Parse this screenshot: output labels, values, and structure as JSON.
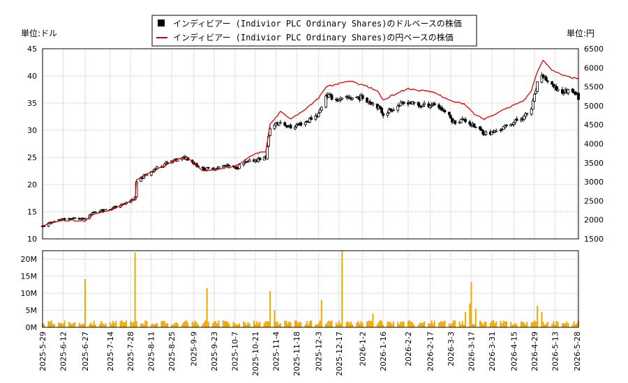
{
  "chart_data": [
    {
      "type": "candlestick",
      "panel": "price",
      "legend": {
        "placement": "top-center",
        "entries": [
          {
            "label": "インディビアー (Indivior PLC Ordinary Shares)のドルベースの株価",
            "color": "#000000",
            "marker": "square"
          },
          {
            "label": "インディビアー (Indivior PLC Ordinary Shares)の円ベースの株価",
            "color": "#e00000",
            "marker": "line"
          }
        ]
      },
      "left_unit": "単位:ドル",
      "right_unit": "単位:円",
      "left_axis": {
        "min": 10,
        "max": 45,
        "ticks": [
          "10",
          "15",
          "20",
          "25",
          "30",
          "35",
          "40",
          "45"
        ]
      },
      "right_axis": {
        "min": 1500,
        "max": 6500,
        "ticks": [
          "1500",
          "2000",
          "2500",
          "3000",
          "3500",
          "4000",
          "4500",
          "5000",
          "5500",
          "6000",
          "6500"
        ]
      },
      "x_range": [
        "2025-05-29",
        "2026-05-29"
      ],
      "grid": true,
      "usd_close_keypoints": [
        [
          "2025-05-29",
          12.3
        ],
        [
          "2025-06-05",
          13.2
        ],
        [
          "2025-06-12",
          13.6
        ],
        [
          "2025-06-20",
          13.8
        ],
        [
          "2025-06-27",
          13.6
        ],
        [
          "2025-07-03",
          15.0
        ],
        [
          "2025-07-14",
          15.5
        ],
        [
          "2025-07-24",
          16.5
        ],
        [
          "2025-07-31",
          17.5
        ],
        [
          "2025-08-01",
          20.5
        ],
        [
          "2025-08-11",
          22.5
        ],
        [
          "2025-08-20",
          23.8
        ],
        [
          "2025-08-28",
          24.5
        ],
        [
          "2025-09-04",
          25.0
        ],
        [
          "2025-09-09",
          24.0
        ],
        [
          "2025-09-15",
          22.8
        ],
        [
          "2025-09-23",
          23.0
        ],
        [
          "2025-10-01",
          23.5
        ],
        [
          "2025-10-07",
          23.0
        ],
        [
          "2025-10-14",
          24.0
        ],
        [
          "2025-10-21",
          24.5
        ],
        [
          "2025-10-28",
          25.0
        ],
        [
          "2025-10-31",
          30.5
        ],
        [
          "2025-11-07",
          31.5
        ],
        [
          "2025-11-14",
          30.5
        ],
        [
          "2025-11-24",
          31.5
        ],
        [
          "2025-12-03",
          33.0
        ],
        [
          "2025-12-08",
          36.5
        ],
        [
          "2025-12-17",
          35.5
        ],
        [
          "2025-12-24",
          36.0
        ],
        [
          "2026-01-02",
          36.0
        ],
        [
          "2026-01-12",
          34.5
        ],
        [
          "2026-01-16",
          33.0
        ],
        [
          "2026-01-26",
          34.5
        ],
        [
          "2026-02-02",
          35.2
        ],
        [
          "2026-02-10",
          34.5
        ],
        [
          "2026-02-20",
          34.8
        ],
        [
          "2026-02-27",
          33.5
        ],
        [
          "2026-03-05",
          31.5
        ],
        [
          "2026-03-12",
          32.0
        ],
        [
          "2026-03-20",
          30.5
        ],
        [
          "2026-03-26",
          29.5
        ],
        [
          "2026-03-31",
          29.5
        ],
        [
          "2026-04-08",
          30.5
        ],
        [
          "2026-04-15",
          31.5
        ],
        [
          "2026-04-22",
          32.5
        ],
        [
          "2026-04-27",
          34.0
        ],
        [
          "2026-05-01",
          38.5
        ],
        [
          "2026-05-05",
          40.0
        ],
        [
          "2026-05-11",
          38.0
        ],
        [
          "2026-05-18",
          37.0
        ],
        [
          "2026-05-25",
          37.5
        ],
        [
          "2026-05-29",
          36.0
        ]
      ],
      "jpy_close_keypoints": [
        [
          "2025-05-29",
          1850
        ],
        [
          "2025-06-12",
          1990
        ],
        [
          "2025-06-27",
          1970
        ],
        [
          "2025-07-03",
          2150
        ],
        [
          "2025-07-14",
          2250
        ],
        [
          "2025-07-31",
          2550
        ],
        [
          "2025-08-01",
          3050
        ],
        [
          "2025-08-11",
          3250
        ],
        [
          "2025-08-28",
          3580
        ],
        [
          "2025-09-04",
          3650
        ],
        [
          "2025-09-15",
          3300
        ],
        [
          "2025-10-07",
          3400
        ],
        [
          "2025-10-21",
          3750
        ],
        [
          "2025-10-28",
          3800
        ],
        [
          "2025-10-31",
          4500
        ],
        [
          "2025-11-07",
          4850
        ],
        [
          "2025-11-14",
          4650
        ],
        [
          "2025-11-24",
          4900
        ],
        [
          "2025-12-03",
          5200
        ],
        [
          "2025-12-08",
          5500
        ],
        [
          "2025-12-24",
          5650
        ],
        [
          "2026-01-02",
          5550
        ],
        [
          "2026-01-12",
          5400
        ],
        [
          "2026-01-16",
          5150
        ],
        [
          "2026-01-26",
          5350
        ],
        [
          "2026-02-02",
          5450
        ],
        [
          "2026-02-20",
          5350
        ],
        [
          "2026-03-05",
          5100
        ],
        [
          "2026-03-12",
          5050
        ],
        [
          "2026-03-20",
          4750
        ],
        [
          "2026-03-26",
          4650
        ],
        [
          "2026-03-31",
          4750
        ],
        [
          "2026-04-08",
          4900
        ],
        [
          "2026-04-22",
          5150
        ],
        [
          "2026-04-27",
          5400
        ],
        [
          "2026-05-01",
          5900
        ],
        [
          "2026-05-05",
          6200
        ],
        [
          "2026-05-11",
          5950
        ],
        [
          "2026-05-18",
          5800
        ],
        [
          "2026-05-29",
          5700
        ]
      ]
    },
    {
      "type": "bar",
      "panel": "volume",
      "y_axis": {
        "min": 0,
        "max": 22.5,
        "unit_suffix": "M",
        "ticks": [
          "0M",
          "5M",
          "10M",
          "15M",
          "20M"
        ]
      },
      "bar_color": "#f0a800",
      "baseline_volume_millions": 1.5,
      "spikes": [
        [
          "2025-06-27",
          14.2
        ],
        [
          "2025-07-31",
          22.0
        ],
        [
          "2025-09-18",
          11.5
        ],
        [
          "2025-10-31",
          10.7
        ],
        [
          "2025-11-03",
          5.0
        ],
        [
          "2025-12-05",
          8.0
        ],
        [
          "2025-12-19",
          22.5
        ],
        [
          "2026-01-09",
          4.0
        ],
        [
          "2026-03-13",
          4.5
        ],
        [
          "2026-03-16",
          7.0
        ],
        [
          "2026-03-17",
          13.3
        ],
        [
          "2026-03-20",
          5.5
        ],
        [
          "2026-05-01",
          6.3
        ],
        [
          "2026-05-04",
          4.5
        ]
      ],
      "x_ticks": [
        "2025-5-29",
        "2025-6-12",
        "2025-6-27",
        "2025-7-14",
        "2025-7-28",
        "2025-8-11",
        "2025-8-25",
        "2025-9-9",
        "2025-9-23",
        "2025-10-7",
        "2025-10-21",
        "2025-11-4",
        "2025-11-18",
        "2025-12-3",
        "2025-12-17",
        "2026-1-2",
        "2026-1-16",
        "2026-2-2",
        "2026-2-17",
        "2026-3-3",
        "2026-3-17",
        "2026-3-31",
        "2026-4-15",
        "2026-4-29",
        "2026-5-13",
        "2026-5-28"
      ]
    }
  ]
}
